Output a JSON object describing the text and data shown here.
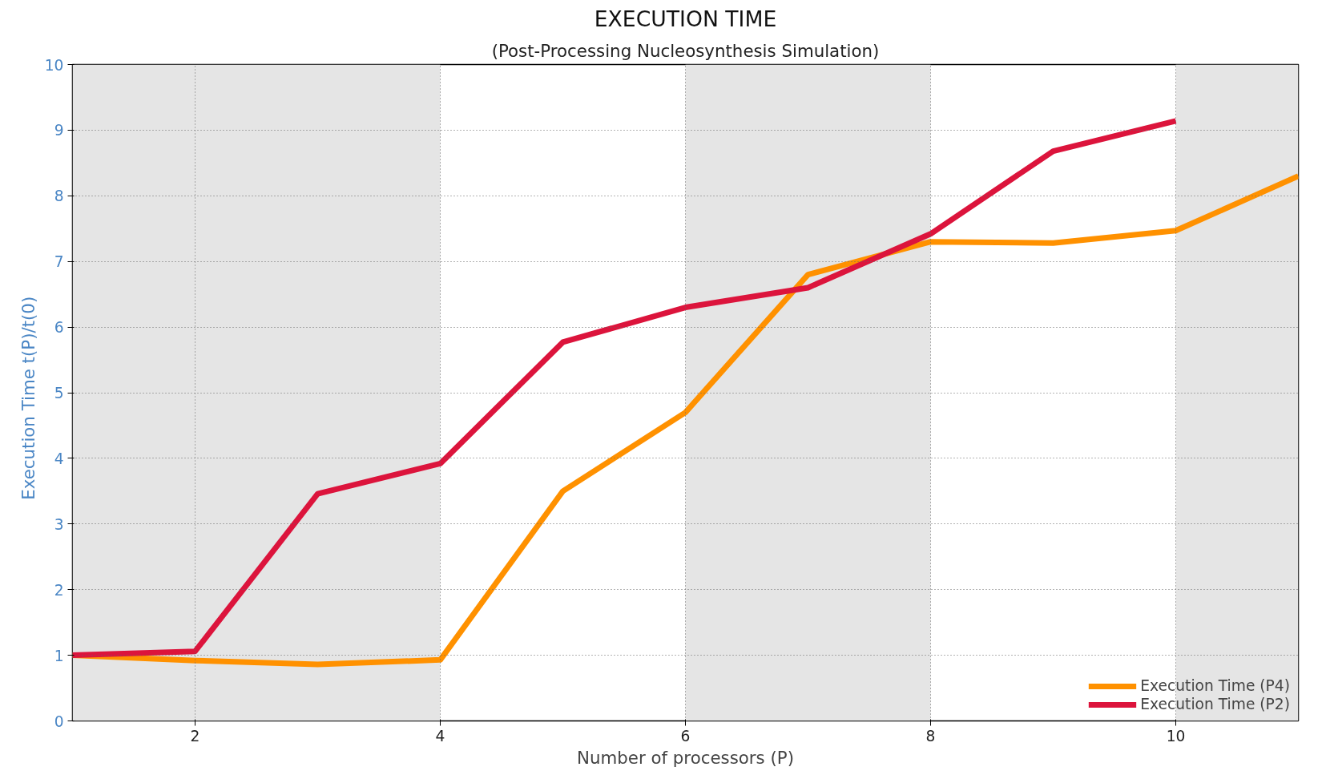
{
  "chart_data": {
    "type": "line",
    "title": "EXECUTION TIME",
    "subtitle": "(Post-Processing Nucleosynthesis Simulation)",
    "xlabel": "Number of processors (P)",
    "ylabel": "Execution Time   t(P)/t(0)",
    "x": [
      1,
      2,
      3,
      4,
      5,
      6,
      7,
      8,
      9,
      10,
      11
    ],
    "series": [
      {
        "name": "Execution Time (P4)",
        "color": "#ff9100",
        "values": [
          1.0,
          0.92,
          0.86,
          0.93,
          3.5,
          4.7,
          6.8,
          7.3,
          7.28,
          7.47,
          8.3
        ]
      },
      {
        "name": "Execution Time (P2)",
        "color": "#dc143c",
        "x": [
          1,
          2,
          3,
          4,
          5,
          6,
          7,
          8,
          9,
          10
        ],
        "values": [
          1.0,
          1.06,
          3.46,
          3.92,
          5.77,
          6.3,
          6.6,
          7.42,
          8.68,
          9.14
        ]
      }
    ],
    "xlim": [
      1,
      11
    ],
    "ylim": [
      0,
      10
    ],
    "xticks": [
      2,
      4,
      6,
      8,
      10
    ],
    "yticks": [
      0,
      1,
      2,
      3,
      4,
      5,
      6,
      7,
      8,
      9,
      10
    ],
    "bands": [
      {
        "axis": "x",
        "from": 1,
        "to": 4,
        "color": "#e5e5e5"
      },
      {
        "axis": "x",
        "from": 6,
        "to": 8,
        "color": "#e5e5e5"
      },
      {
        "axis": "x",
        "from": 10,
        "to": 11,
        "color": "#e5e5e5"
      }
    ],
    "grid": true,
    "legend": "bottom right",
    "line_style": "solid",
    "marker": "none"
  }
}
